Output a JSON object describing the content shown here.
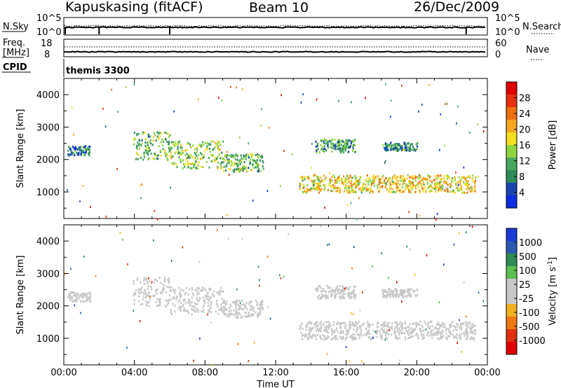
{
  "header": {
    "station": "Kapuskasing (fitACF)",
    "beam": "Beam 10",
    "date": "26/Dec/2009"
  },
  "strip1": {
    "left_label": "N.Sky",
    "left_ticks": [
      "10^5",
      "10^0"
    ],
    "right_ticks": [
      "10^5",
      "10^0"
    ],
    "right_label": "N.Search"
  },
  "strip2": {
    "left_label_line1": "Freq.",
    "left_label_line2": "[MHz]",
    "left_ticks": [
      "18",
      "8"
    ],
    "right_ticks": [
      "60",
      "0"
    ],
    "right_label": "Nave"
  },
  "cpid": {
    "label": "CPID",
    "value": "themis 3300"
  },
  "x_axis": {
    "label": "Time UT",
    "ticks": [
      "00:00",
      "04:00",
      "08:00",
      "12:00",
      "16:00",
      "20:00",
      "00:00"
    ]
  },
  "colors": {
    "power": [
      "#0a2ee0",
      "#1846b0",
      "#2e8b5a",
      "#49a860",
      "#8fd63e",
      "#f5dd20",
      "#f5a820",
      "#f07010",
      "#e83010",
      "#e00000"
    ],
    "velocity": [
      "#1a3ad8",
      "#2a5ab0",
      "#2e8b57",
      "#5cc050",
      "#c8c8c8",
      "#c8c8c8",
      "#f0b020",
      "#f07810",
      "#e03010",
      "#e00000"
    ]
  },
  "chart_data": [
    {
      "type": "heatmap",
      "title": "",
      "xlabel": "Time UT",
      "ylabel": "Slant Range [km]",
      "xlim": [
        0,
        24
      ],
      "ylim": [
        180,
        4500
      ],
      "x_ticks": [
        "00:00",
        "04:00",
        "08:00",
        "12:00",
        "16:00",
        "20:00",
        "00:00"
      ],
      "y_ticks": [
        1000,
        2000,
        3000,
        4000
      ],
      "colorbar": {
        "label": "Power [dB]",
        "range": [
          0,
          32
        ],
        "ticks": [
          "4",
          "8",
          "12",
          "16",
          "20",
          "24",
          "28"
        ]
      },
      "regions": [
        {
          "t_start": 0.2,
          "t_end": 1.5,
          "range_start": 2150,
          "range_end": 2450,
          "value": 8
        },
        {
          "t_start": 3.9,
          "t_end": 6.0,
          "range_start": 2000,
          "range_end": 2900,
          "value": 12
        },
        {
          "t_start": 6.0,
          "t_end": 9.0,
          "range_start": 1750,
          "range_end": 2600,
          "value": 14
        },
        {
          "t_start": 9.0,
          "t_end": 11.3,
          "range_start": 1650,
          "range_end": 2200,
          "value": 12
        },
        {
          "t_start": 13.3,
          "t_end": 23.3,
          "range_start": 1000,
          "range_end": 1550,
          "value": 18
        },
        {
          "t_start": 14.2,
          "t_end": 16.5,
          "range_start": 2250,
          "range_end": 2650,
          "value": 10
        },
        {
          "t_start": 18.0,
          "t_end": 20.0,
          "range_start": 2300,
          "range_end": 2550,
          "value": 8
        }
      ]
    },
    {
      "type": "heatmap",
      "title": "",
      "xlabel": "Time UT",
      "ylabel": "Slant Range [km]",
      "xlim": [
        0,
        24
      ],
      "ylim": [
        180,
        4500
      ],
      "x_ticks": [
        "00:00",
        "04:00",
        "08:00",
        "12:00",
        "16:00",
        "20:00",
        "00:00"
      ],
      "y_ticks": [
        1000,
        2000,
        3000,
        4000
      ],
      "colorbar": {
        "label": "Velocity [m s^-1]",
        "range": [
          -1000,
          1000
        ],
        "ticks": [
          "1000",
          "500",
          "100",
          "25",
          "-25",
          "-100",
          "-500",
          "-1000"
        ]
      },
      "regions": [
        {
          "t_start": 0.2,
          "t_end": 1.5,
          "range_start": 2150,
          "range_end": 2450,
          "value": 0
        },
        {
          "t_start": 3.9,
          "t_end": 6.0,
          "range_start": 2000,
          "range_end": 2900,
          "value": 0
        },
        {
          "t_start": 6.0,
          "t_end": 9.0,
          "range_start": 1750,
          "range_end": 2600,
          "value": -50
        },
        {
          "t_start": 9.0,
          "t_end": 11.3,
          "range_start": 1650,
          "range_end": 2200,
          "value": 0
        },
        {
          "t_start": 13.3,
          "t_end": 23.3,
          "range_start": 1000,
          "range_end": 1550,
          "value": 0
        },
        {
          "t_start": 14.2,
          "t_end": 16.5,
          "range_start": 2250,
          "range_end": 2650,
          "value": -100
        },
        {
          "t_start": 18.0,
          "t_end": 20.0,
          "range_start": 2300,
          "range_end": 2550,
          "value": -100
        }
      ]
    }
  ]
}
